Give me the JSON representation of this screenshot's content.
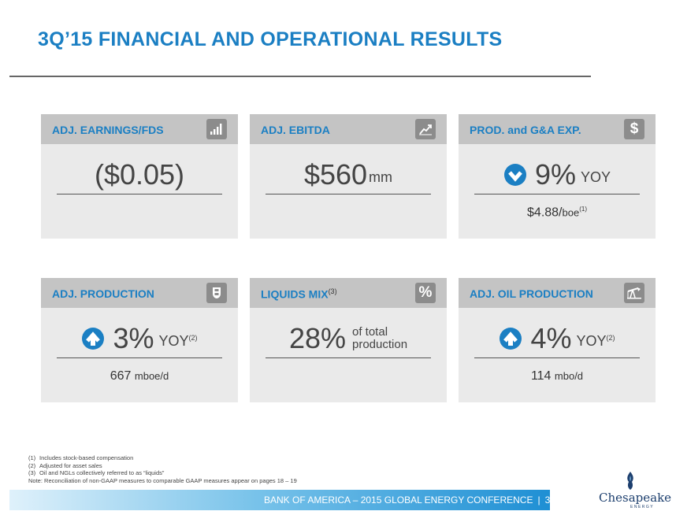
{
  "title": "3Q’15 FINANCIAL AND OPERATIONAL RESULTS",
  "cards": [
    {
      "title": "ADJ. EARNINGS/FDS",
      "value": "($0.05)",
      "icon": "bar-chart-icon"
    },
    {
      "title": "ADJ. EBITDA",
      "value": "$560",
      "unit": "mm",
      "icon": "line-chart-icon"
    },
    {
      "title": "PROD. and G&A EXP.",
      "value": "9%",
      "yoy": "YOY",
      "direction": "down",
      "sub_value": "$4.88/",
      "sub_unit": "boe",
      "sub_note": "(1)",
      "icon": "dollar-icon",
      "icon_glyph": "$"
    },
    {
      "title": "ADJ. PRODUCTION",
      "value": "3%",
      "yoy": "YOY",
      "yoy_note": "(2)",
      "direction": "up",
      "sub_value": "667",
      "sub_unit": "mboe/d",
      "icon": "gas-tank-icon"
    },
    {
      "title": "LIQUIDS MIX",
      "title_note": "(3)",
      "value": "28%",
      "stack_line1": "of total",
      "stack_line2": "production",
      "icon": "percent-icon",
      "icon_glyph": "%"
    },
    {
      "title": "ADJ. OIL PRODUCTION",
      "value": "4%",
      "yoy": "YOY",
      "yoy_note": "(2)",
      "direction": "up",
      "sub_value": "114",
      "sub_unit": "mbo/d",
      "icon": "oil-pump-icon"
    }
  ],
  "notes": [
    {
      "num": "(1)",
      "text": "Includes stock-based compensation"
    },
    {
      "num": "(2)",
      "text": "Adjusted for asset sales"
    },
    {
      "num": "(3)",
      "text": "Oil and NGLs collectively referred to as “liquids”"
    },
    {
      "num": "Note:",
      "text": "Reconciliation of non-GAAP measures to comparable GAAP measures appear on pages 18 – 19"
    }
  ],
  "footer": {
    "text": "BANK OF AMERICA – 2015 GLOBAL ENERGY CONFERENCE",
    "page": "3"
  },
  "logo": {
    "name": "Chesapeake",
    "sub": "ENERGY"
  },
  "colors": {
    "accent": "#1b7fc3",
    "header_bg": "#c4c4c4",
    "card_bg": "#eaeaea",
    "icon_bg": "#8c8c8c"
  }
}
